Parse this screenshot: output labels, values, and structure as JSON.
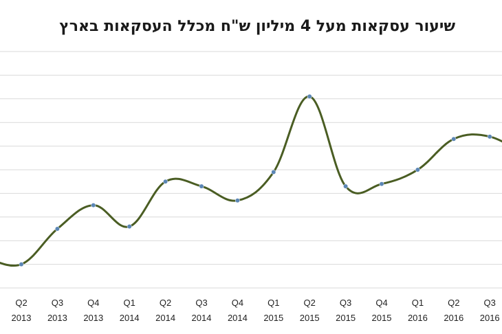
{
  "title": "שיעור עסקאות מעל 4 מיליון ש\"ח מכלל העסקאות בארץ",
  "colors": {
    "line": "#4a5d23",
    "point": "#5b86b5",
    "grid": "#d9d9d9"
  },
  "chart_data": {
    "type": "line",
    "title": "שיעור עסקאות מעל 4 מיליון ש\"ח מכלל העסקאות בארץ",
    "xlabel": "",
    "ylabel": "",
    "grid": true,
    "legend": "none",
    "smooth": true,
    "x_quarters": [
      "Q2",
      "Q3",
      "Q4",
      "Q1",
      "Q2",
      "Q3",
      "Q4",
      "Q1",
      "Q2",
      "Q3",
      "Q4",
      "Q1",
      "Q2",
      "Q3"
    ],
    "x_years": [
      "2013",
      "2013",
      "2013",
      "2014",
      "2014",
      "2014",
      "2014",
      "2015",
      "2015",
      "2015",
      "2015",
      "2016",
      "2016",
      "2016"
    ],
    "categories": [
      "Q2 2013",
      "Q3 2013",
      "Q4 2013",
      "Q1 2014",
      "Q2 2014",
      "Q3 2014",
      "Q4 2014",
      "Q1 2015",
      "Q2 2015",
      "Q3 2015",
      "Q4 2015",
      "Q1 2016",
      "Q2 2016",
      "Q3 2016"
    ],
    "values": [
      1.0,
      2.5,
      3.5,
      2.6,
      4.5,
      4.3,
      3.7,
      4.9,
      8.1,
      4.3,
      4.4,
      5.0,
      6.3,
      6.4
    ],
    "edge_values": {
      "left": 1.3,
      "right": 5.6
    },
    "ylim": [
      0,
      10
    ],
    "gridline_count": 11
  }
}
